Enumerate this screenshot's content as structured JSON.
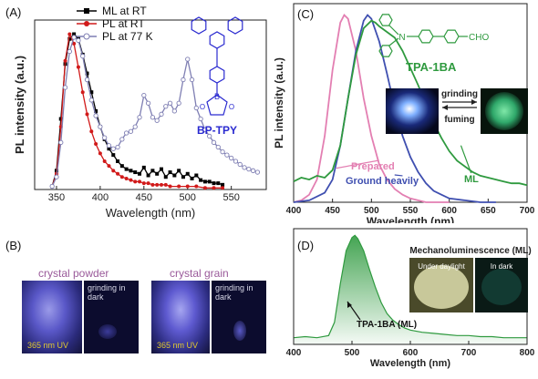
{
  "panel_labels": {
    "a": "(A)",
    "b": "(B)",
    "c": "(C)",
    "d": "(D)"
  },
  "chart_data": [
    {
      "panel": "A",
      "type": "line",
      "xlabel": "Wavelength (nm)",
      "ylabel": "PL intensity (a.u.)",
      "xlim": [
        325,
        590
      ],
      "ylim": [
        0,
        1.08
      ],
      "xticks": [
        350,
        400,
        450,
        500,
        550
      ],
      "legend_position": "top-center",
      "molecule_label": "BP-TPY",
      "series": [
        {
          "name": "ML at RT",
          "color": "#000000",
          "marker": "square",
          "x": [
            345,
            350,
            355,
            360,
            365,
            370,
            375,
            380,
            385,
            390,
            395,
            400,
            405,
            410,
            415,
            420,
            425,
            430,
            435,
            440,
            445,
            450,
            455,
            460,
            465,
            470,
            475,
            480,
            485,
            490,
            495,
            500,
            505,
            510,
            515,
            520,
            525,
            530,
            535,
            540
          ],
          "y": [
            0.02,
            0.12,
            0.45,
            0.8,
            0.96,
            0.99,
            0.96,
            0.86,
            0.74,
            0.62,
            0.5,
            0.4,
            0.32,
            0.26,
            0.22,
            0.18,
            0.15,
            0.13,
            0.12,
            0.11,
            0.1,
            0.14,
            0.09,
            0.12,
            0.1,
            0.13,
            0.08,
            0.11,
            0.09,
            0.12,
            0.08,
            0.1,
            0.07,
            0.09,
            0.06,
            0.05,
            0.05,
            0.04,
            0.04,
            0.03
          ]
        },
        {
          "name": "PL at RT",
          "color": "#d11a1a",
          "marker": "circle",
          "x": [
            345,
            350,
            355,
            360,
            365,
            370,
            375,
            380,
            385,
            390,
            395,
            400,
            405,
            410,
            415,
            420,
            425,
            430,
            435,
            440,
            445,
            450,
            455,
            460,
            465,
            470,
            475,
            480,
            490,
            500,
            510,
            520,
            530,
            540
          ],
          "y": [
            0.02,
            0.1,
            0.4,
            0.82,
            0.99,
            0.93,
            0.78,
            0.62,
            0.48,
            0.37,
            0.29,
            0.23,
            0.18,
            0.15,
            0.12,
            0.1,
            0.08,
            0.07,
            0.06,
            0.05,
            0.05,
            0.04,
            0.04,
            0.03,
            0.03,
            0.03,
            0.03,
            0.02,
            0.02,
            0.02,
            0.02,
            0.01,
            0.01,
            0.01
          ]
        },
        {
          "name": "PL at 77 K",
          "color": "#7f7fb3",
          "marker": "open-circle",
          "x": [
            345,
            350,
            355,
            360,
            365,
            370,
            375,
            380,
            385,
            390,
            395,
            400,
            405,
            410,
            415,
            420,
            425,
            430,
            435,
            440,
            445,
            450,
            455,
            460,
            465,
            470,
            475,
            480,
            485,
            490,
            495,
            500,
            505,
            510,
            515,
            520,
            525,
            530,
            535,
            540,
            545,
            550,
            555,
            560,
            565,
            570,
            575,
            580
          ],
          "y": [
            0.02,
            0.08,
            0.3,
            0.65,
            0.88,
            0.97,
            0.95,
            0.85,
            0.7,
            0.57,
            0.47,
            0.4,
            0.33,
            0.28,
            0.26,
            0.27,
            0.32,
            0.36,
            0.37,
            0.4,
            0.46,
            0.6,
            0.55,
            0.46,
            0.44,
            0.48,
            0.53,
            0.55,
            0.5,
            0.55,
            0.7,
            0.83,
            0.7,
            0.52,
            0.45,
            0.38,
            0.34,
            0.3,
            0.27,
            0.24,
            0.22,
            0.2,
            0.18,
            0.16,
            0.14,
            0.13,
            0.12,
            0.11
          ]
        }
      ]
    },
    {
      "panel": "C",
      "type": "line",
      "xlabel": "Wavelength (nm)",
      "ylabel": "PL intensity (a.u.)",
      "xlim": [
        400,
        700
      ],
      "ylim": [
        0,
        1.05
      ],
      "xticks": [
        400,
        450,
        500,
        550,
        600,
        650,
        700
      ],
      "molecule_label": "TPA-1BA",
      "substituent_label": "CHO",
      "photo_labels": {
        "grinding": "grinding",
        "fuming": "fuming"
      },
      "series": [
        {
          "name": "Prepared",
          "color": "#e37fb2",
          "x": [
            400,
            410,
            420,
            430,
            440,
            450,
            460,
            465,
            470,
            480,
            490,
            500,
            510,
            520,
            530,
            540,
            550,
            560,
            570,
            580,
            590,
            600
          ],
          "y": [
            0.0,
            0.01,
            0.04,
            0.12,
            0.35,
            0.7,
            0.95,
            0.99,
            0.97,
            0.8,
            0.55,
            0.35,
            0.2,
            0.12,
            0.07,
            0.04,
            0.02,
            0.01,
            0.0,
            0.0,
            0.0,
            0.0
          ]
        },
        {
          "name": "Ground heavily",
          "color": "#3f4fb0",
          "x": [
            400,
            420,
            440,
            450,
            460,
            470,
            480,
            490,
            495,
            500,
            510,
            520,
            530,
            540,
            550,
            560,
            570,
            580,
            590,
            600,
            620,
            640,
            660
          ],
          "y": [
            0.0,
            0.01,
            0.05,
            0.12,
            0.3,
            0.55,
            0.8,
            0.96,
            0.99,
            0.97,
            0.85,
            0.68,
            0.5,
            0.35,
            0.24,
            0.16,
            0.1,
            0.06,
            0.04,
            0.02,
            0.01,
            0.0,
            0.0
          ]
        },
        {
          "name": "ML",
          "color": "#2f9a3f",
          "x": [
            400,
            410,
            420,
            430,
            440,
            450,
            460,
            470,
            480,
            490,
            500,
            505,
            510,
            520,
            530,
            540,
            550,
            560,
            570,
            580,
            590,
            600,
            610,
            620,
            630,
            640,
            650,
            660,
            670,
            680,
            690,
            700
          ],
          "y": [
            0.11,
            0.13,
            0.12,
            0.14,
            0.13,
            0.17,
            0.3,
            0.55,
            0.78,
            0.92,
            0.96,
            0.95,
            0.93,
            0.9,
            0.87,
            0.8,
            0.71,
            0.62,
            0.52,
            0.42,
            0.34,
            0.27,
            0.22,
            0.19,
            0.16,
            0.14,
            0.13,
            0.12,
            0.11,
            0.1,
            0.1,
            0.09
          ]
        }
      ]
    },
    {
      "panel": "D",
      "type": "area",
      "xlabel": "Wavelength (nm)",
      "xlim": [
        400,
        800
      ],
      "ylim": [
        0,
        1.05
      ],
      "xticks": [
        400,
        500,
        600,
        700,
        800
      ],
      "series_label": "TPA-1BA (ML)",
      "inset_title": "Mechanoluminescence (ML)",
      "inset_labels": {
        "daylight": "Under daylight",
        "dark": "In  dark"
      },
      "series": [
        {
          "color": "#2f9a3f",
          "x": [
            400,
            420,
            440,
            460,
            470,
            480,
            490,
            500,
            505,
            510,
            520,
            530,
            540,
            550,
            560,
            570,
            580,
            590,
            600,
            620,
            640,
            660,
            680,
            700,
            720,
            740,
            760,
            780,
            800
          ],
          "y": [
            0.06,
            0.07,
            0.06,
            0.08,
            0.2,
            0.55,
            0.85,
            0.97,
            0.99,
            0.96,
            0.85,
            0.68,
            0.52,
            0.38,
            0.28,
            0.22,
            0.18,
            0.15,
            0.13,
            0.11,
            0.1,
            0.09,
            0.08,
            0.08,
            0.07,
            0.07,
            0.06,
            0.06,
            0.06
          ]
        }
      ]
    }
  ],
  "panel_b": {
    "left_title": "crystal powder",
    "right_title": "crystal grain",
    "uv_label": "365 nm UV",
    "grinding_label": "grinding in dark"
  }
}
